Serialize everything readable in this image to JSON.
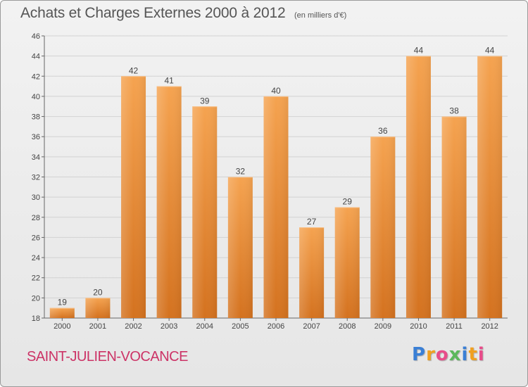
{
  "chart_data": {
    "type": "bar",
    "title": "Achats et Charges Externes 2000 à 2012",
    "subtitle": "(en milliers d'€)",
    "categories": [
      "2000",
      "2001",
      "2002",
      "2003",
      "2004",
      "2005",
      "2006",
      "2007",
      "2008",
      "2009",
      "2010",
      "2011",
      "2012"
    ],
    "values": [
      19,
      20,
      42,
      41,
      39,
      32,
      40,
      27,
      29,
      36,
      44,
      38,
      44
    ],
    "ylim": [
      18,
      46
    ],
    "yticks": [
      18,
      20,
      22,
      24,
      26,
      28,
      30,
      32,
      34,
      36,
      38,
      40,
      42,
      44,
      46
    ],
    "grid": "horizontal",
    "bar_color_top": "#f5a350",
    "bar_color_bottom": "#d4721f"
  },
  "footer": {
    "commune": "SAINT-JULIEN-VOCANCE",
    "logo": "Proxiti",
    "logo_letters": [
      "P",
      "r",
      "o",
      "x",
      "i",
      "t",
      "i"
    ]
  }
}
